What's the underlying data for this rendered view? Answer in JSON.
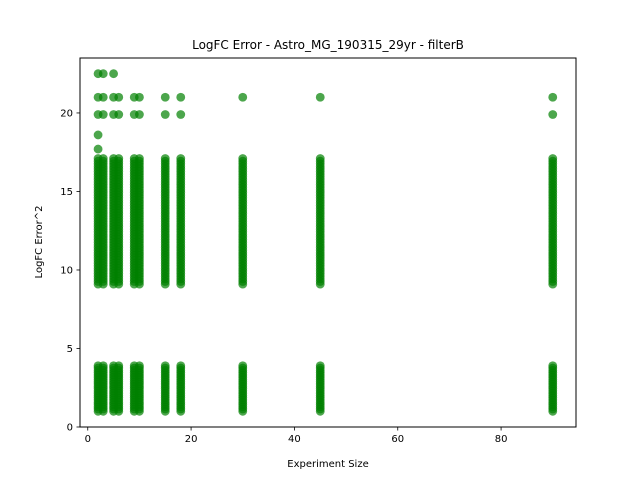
{
  "chart_data": {
    "type": "scatter",
    "title": "LogFC Error - Astro_MG_190315_29yr - filterB",
    "xlabel": "Experiment Size",
    "ylabel": "LogFC Error^2",
    "xlim": [
      -1.5,
      94.5
    ],
    "ylim": [
      0,
      23.5
    ],
    "xticks": [
      0,
      20,
      40,
      60,
      80
    ],
    "yticks": [
      0,
      5,
      10,
      15,
      20
    ],
    "grid": false,
    "marker_color": "#008000",
    "x_values": [
      2,
      3,
      5,
      6,
      9,
      10,
      15,
      18,
      30,
      45,
      90
    ],
    "upper_band": [
      9.1,
      17.1
    ],
    "lower_band": [
      1.0,
      3.9
    ],
    "outliers": [
      {
        "x": 2,
        "y": 22.5
      },
      {
        "x": 3,
        "y": 22.5
      },
      {
        "x": 5,
        "y": 22.5
      },
      {
        "x": 2,
        "y": 21.0
      },
      {
        "x": 3,
        "y": 21.0
      },
      {
        "x": 5,
        "y": 21.0
      },
      {
        "x": 6,
        "y": 21.0
      },
      {
        "x": 9,
        "y": 21.0
      },
      {
        "x": 10,
        "y": 21.0
      },
      {
        "x": 15,
        "y": 21.0
      },
      {
        "x": 18,
        "y": 21.0
      },
      {
        "x": 30,
        "y": 21.0
      },
      {
        "x": 45,
        "y": 21.0
      },
      {
        "x": 90,
        "y": 21.0
      },
      {
        "x": 2,
        "y": 19.9
      },
      {
        "x": 3,
        "y": 19.9
      },
      {
        "x": 5,
        "y": 19.9
      },
      {
        "x": 6,
        "y": 19.9
      },
      {
        "x": 9,
        "y": 19.9
      },
      {
        "x": 10,
        "y": 19.9
      },
      {
        "x": 15,
        "y": 19.9
      },
      {
        "x": 18,
        "y": 19.9
      },
      {
        "x": 90,
        "y": 19.9
      },
      {
        "x": 2,
        "y": 18.6
      },
      {
        "x": 2,
        "y": 17.7
      }
    ]
  }
}
